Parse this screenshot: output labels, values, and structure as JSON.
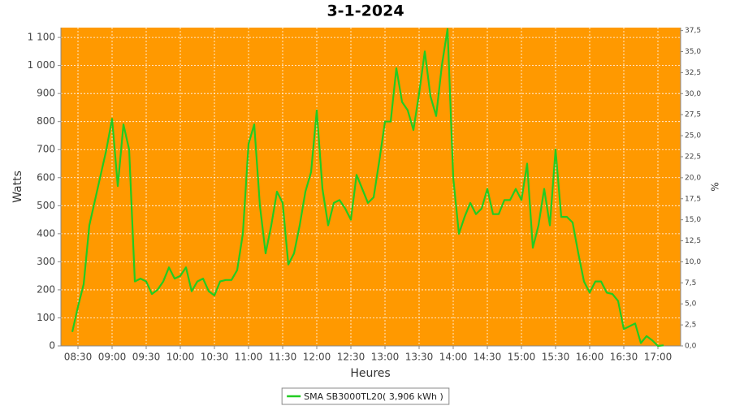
{
  "chart_data": {
    "type": "line",
    "title": "3-1-2024",
    "y_label": "Watts",
    "y2_label": "%",
    "x_label": "Heures",
    "background": "#ff9900",
    "grid": true,
    "x": [
      "08:25",
      "08:30",
      "08:35",
      "08:40",
      "08:45",
      "08:50",
      "08:55",
      "09:00",
      "09:05",
      "09:10",
      "09:15",
      "09:20",
      "09:25",
      "09:30",
      "09:35",
      "09:40",
      "09:45",
      "09:50",
      "09:55",
      "10:00",
      "10:05",
      "10:10",
      "10:15",
      "10:20",
      "10:25",
      "10:30",
      "10:35",
      "10:40",
      "10:45",
      "10:50",
      "10:55",
      "11:00",
      "11:05",
      "11:10",
      "11:15",
      "11:20",
      "11:25",
      "11:30",
      "11:35",
      "11:40",
      "11:45",
      "11:50",
      "11:55",
      "12:00",
      "12:05",
      "12:10",
      "12:15",
      "12:20",
      "12:25",
      "12:30",
      "12:35",
      "12:40",
      "12:45",
      "12:50",
      "12:55",
      "13:00",
      "13:05",
      "13:10",
      "13:15",
      "13:20",
      "13:25",
      "13:30",
      "13:35",
      "13:40",
      "13:45",
      "13:50",
      "13:55",
      "14:00",
      "14:05",
      "14:10",
      "14:15",
      "14:20",
      "14:25",
      "14:30",
      "14:35",
      "14:40",
      "14:45",
      "14:50",
      "14:55",
      "15:00",
      "15:05",
      "15:10",
      "15:15",
      "15:20",
      "15:25",
      "15:30",
      "15:35",
      "15:40",
      "15:45",
      "15:50",
      "15:55",
      "16:00",
      "16:05",
      "16:10",
      "16:15",
      "16:20",
      "16:25",
      "16:30",
      "16:35",
      "16:40",
      "16:45",
      "16:50",
      "16:55",
      "17:00",
      "17:05"
    ],
    "series": [
      {
        "name": "SMA SB3000TL20( 3,906 kWh )",
        "color": "#22cc22",
        "values": [
          50,
          140,
          220,
          430,
          520,
          610,
          700,
          810,
          570,
          790,
          700,
          230,
          240,
          230,
          185,
          200,
          230,
          280,
          240,
          250,
          280,
          195,
          230,
          240,
          195,
          180,
          230,
          235,
          235,
          270,
          400,
          720,
          790,
          500,
          330,
          430,
          550,
          510,
          290,
          330,
          430,
          550,
          620,
          840,
          560,
          430,
          510,
          520,
          490,
          450,
          610,
          560,
          510,
          530,
          660,
          800,
          800,
          990,
          870,
          840,
          770,
          900,
          1050,
          890,
          820,
          1000,
          1130,
          600,
          400,
          460,
          510,
          470,
          490,
          560,
          470,
          470,
          520,
          520,
          560,
          520,
          650,
          350,
          430,
          560,
          430,
          700,
          460,
          460,
          440,
          330,
          230,
          190,
          230,
          230,
          190,
          185,
          160,
          60,
          70,
          80,
          10,
          35,
          20,
          0,
          2
        ]
      }
    ],
    "xlim": [
      "08:15",
      "17:20"
    ],
    "xticks": [
      "08:30",
      "09:00",
      "09:30",
      "10:00",
      "10:30",
      "11:00",
      "11:30",
      "12:00",
      "12:30",
      "13:00",
      "13:30",
      "14:00",
      "14:30",
      "15:00",
      "15:30",
      "16:00",
      "16:30",
      "17:00"
    ],
    "ylim": [
      0,
      1135
    ],
    "yticks": [
      0,
      100,
      200,
      300,
      400,
      500,
      600,
      700,
      800,
      900,
      {
        "value": 1000,
        "label": "1 000"
      },
      {
        "value": 1100,
        "label": "1 100"
      }
    ],
    "y2lim": [
      0,
      37.85
    ],
    "y2ticks": [
      {
        "value": 0,
        "label": "0,0"
      },
      {
        "value": 2.5,
        "label": "2,5"
      },
      {
        "value": 5,
        "label": "5,0"
      },
      {
        "value": 7.5,
        "label": "7,5"
      },
      {
        "value": 10,
        "label": "10,0"
      },
      {
        "value": 12.5,
        "label": "12,5"
      },
      {
        "value": 15,
        "label": "15,0"
      },
      {
        "value": 17.5,
        "label": "17,5"
      },
      {
        "value": 20,
        "label": "20,0"
      },
      {
        "value": 22.5,
        "label": "22,5"
      },
      {
        "value": 25,
        "label": "25,0"
      },
      {
        "value": 27.5,
        "label": "27,5"
      },
      {
        "value": 30,
        "label": "30,0"
      },
      {
        "value": 32.5,
        "label": "32,5"
      },
      {
        "value": 35,
        "label": "35,0"
      },
      {
        "value": 37.5,
        "label": "37,5"
      }
    ]
  }
}
